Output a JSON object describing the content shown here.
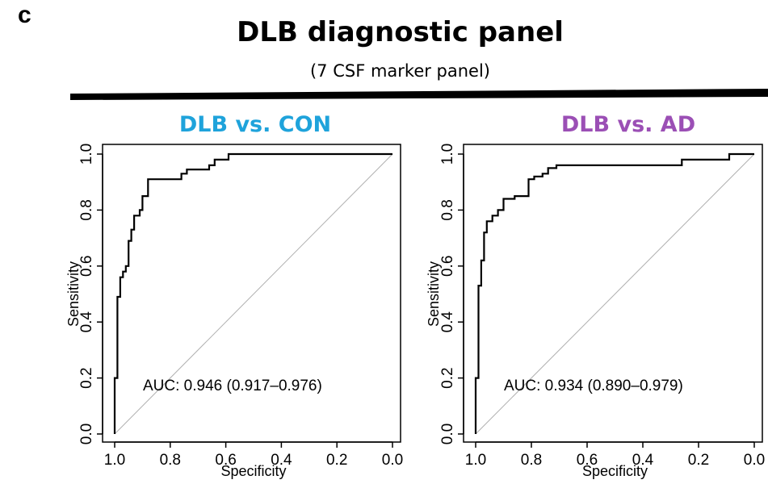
{
  "header": {
    "panel_letter": "c",
    "title": "DLB diagnostic panel",
    "subtitle": "(7 CSF marker panel)"
  },
  "colors": {
    "left_title": "#1fa3db",
    "right_title": "#9b4fb5",
    "curve": "#000000",
    "diagonal": "#b0b0b0",
    "rule": "#000000"
  },
  "chart_data": [
    {
      "type": "line",
      "title": "DLB vs. CON",
      "xlabel": "Specificity",
      "ylabel": "Sensitivity",
      "xlim": [
        1.0,
        0.0
      ],
      "ylim": [
        0.0,
        1.0
      ],
      "x_reversed": true,
      "xticks": [
        "1.0",
        "0.8",
        "0.6",
        "0.4",
        "0.2",
        "0.0"
      ],
      "yticks": [
        "0.0",
        "0.2",
        "0.4",
        "0.6",
        "0.8",
        "1.0"
      ],
      "annotation": "AUC: 0.946 (0.917–0.976)",
      "diagonal": true,
      "series": [
        {
          "x": [
            1.0,
            1.0,
            0.99,
            0.99,
            0.98,
            0.98,
            0.97,
            0.97,
            0.96,
            0.96,
            0.95,
            0.95,
            0.94,
            0.94,
            0.93,
            0.93,
            0.91,
            0.91,
            0.9,
            0.9,
            0.88,
            0.88,
            0.76,
            0.76,
            0.74,
            0.74,
            0.66,
            0.66,
            0.64,
            0.64,
            0.59,
            0.59,
            0.0
          ],
          "y": [
            0.0,
            0.2,
            0.2,
            0.49,
            0.49,
            0.56,
            0.56,
            0.58,
            0.58,
            0.6,
            0.6,
            0.69,
            0.69,
            0.73,
            0.73,
            0.78,
            0.78,
            0.8,
            0.8,
            0.85,
            0.85,
            0.91,
            0.91,
            0.93,
            0.93,
            0.945,
            0.945,
            0.96,
            0.96,
            0.98,
            0.98,
            1.0,
            1.0
          ]
        }
      ]
    },
    {
      "type": "line",
      "title": "DLB vs. AD",
      "xlabel": "Specificity",
      "ylabel": "Sensitivity",
      "xlim": [
        1.0,
        0.0
      ],
      "ylim": [
        0.0,
        1.0
      ],
      "x_reversed": true,
      "xticks": [
        "1.0",
        "0.8",
        "0.6",
        "0.4",
        "0.2",
        "0.0"
      ],
      "yticks": [
        "0.0",
        "0.2",
        "0.4",
        "0.6",
        "0.8",
        "1.0"
      ],
      "annotation": "AUC: 0.934 (0.890–0.979)",
      "diagonal": true,
      "series": [
        {
          "x": [
            1.0,
            1.0,
            0.99,
            0.99,
            0.98,
            0.98,
            0.97,
            0.97,
            0.96,
            0.96,
            0.94,
            0.94,
            0.92,
            0.92,
            0.9,
            0.9,
            0.86,
            0.86,
            0.81,
            0.81,
            0.79,
            0.79,
            0.76,
            0.76,
            0.74,
            0.74,
            0.71,
            0.71,
            0.26,
            0.26,
            0.09,
            0.09,
            0.0
          ],
          "y": [
            0.0,
            0.2,
            0.2,
            0.53,
            0.53,
            0.62,
            0.62,
            0.72,
            0.72,
            0.76,
            0.76,
            0.78,
            0.78,
            0.8,
            0.8,
            0.84,
            0.84,
            0.85,
            0.85,
            0.91,
            0.91,
            0.92,
            0.92,
            0.93,
            0.93,
            0.95,
            0.95,
            0.96,
            0.96,
            0.98,
            0.98,
            1.0,
            1.0
          ]
        }
      ]
    }
  ]
}
